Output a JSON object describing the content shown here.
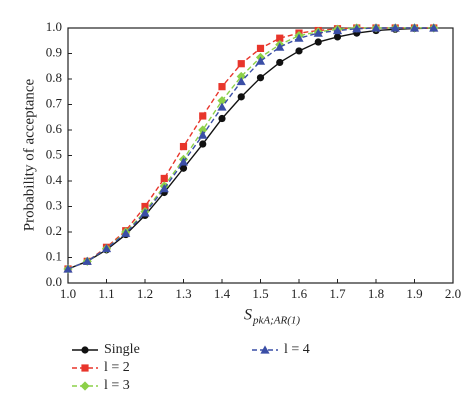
{
  "chart_data": {
    "type": "line",
    "xlabel": "S",
    "xlabel_subscript": "pkA;AR(1)",
    "ylabel": "Probability of acceptance",
    "x": [
      1.0,
      1.05,
      1.1,
      1.15,
      1.2,
      1.25,
      1.3,
      1.35,
      1.4,
      1.45,
      1.5,
      1.55,
      1.6,
      1.65,
      1.7,
      1.75,
      1.8,
      1.85,
      1.9,
      1.95
    ],
    "series": [
      {
        "name": "Single",
        "color": "#111111",
        "marker": "circle",
        "dashed": false,
        "values": [
          0.055,
          0.085,
          0.13,
          0.19,
          0.265,
          0.355,
          0.45,
          0.545,
          0.645,
          0.73,
          0.805,
          0.865,
          0.91,
          0.945,
          0.965,
          0.98,
          0.99,
          0.995,
          0.998,
          1.0
        ]
      },
      {
        "name": "l = 2",
        "color": "#e8352b",
        "marker": "square",
        "dashed": true,
        "values": [
          0.055,
          0.085,
          0.14,
          0.205,
          0.3,
          0.41,
          0.535,
          0.655,
          0.77,
          0.86,
          0.92,
          0.96,
          0.98,
          0.99,
          0.997,
          1.0,
          1.0,
          1.0,
          1.0,
          1.0
        ]
      },
      {
        "name": "l = 3",
        "color": "#8cd048",
        "marker": "diamond",
        "dashed": true,
        "values": [
          0.055,
          0.085,
          0.135,
          0.2,
          0.28,
          0.38,
          0.485,
          0.6,
          0.715,
          0.81,
          0.885,
          0.935,
          0.97,
          0.985,
          0.995,
          1.0,
          1.0,
          1.0,
          1.0,
          1.0
        ]
      },
      {
        "name": "l = 4",
        "color": "#3a4ea6",
        "marker": "triangle",
        "dashed": true,
        "values": [
          0.055,
          0.085,
          0.135,
          0.195,
          0.275,
          0.37,
          0.475,
          0.58,
          0.69,
          0.79,
          0.87,
          0.925,
          0.96,
          0.98,
          0.99,
          0.997,
          1.0,
          1.0,
          1.0,
          1.0
        ]
      }
    ],
    "xlim": [
      1.0,
      2.0
    ],
    "xticks": [
      {
        "value": 1.0,
        "label": "1.0"
      },
      {
        "value": 1.1,
        "label": "1.1"
      },
      {
        "value": 1.2,
        "label": "1.2"
      },
      {
        "value": 1.3,
        "label": "1.3"
      },
      {
        "value": 1.4,
        "label": "1.4"
      },
      {
        "value": 1.5,
        "label": "1.5"
      },
      {
        "value": 1.6,
        "label": "1.6"
      },
      {
        "value": 1.7,
        "label": "1.7"
      },
      {
        "value": 1.8,
        "label": "1.8"
      },
      {
        "value": 1.9,
        "label": "1.9"
      },
      {
        "value": 2.0,
        "label": "2.0"
      }
    ],
    "ylim": [
      0.0,
      1.0
    ],
    "yticks": [
      {
        "value": 0.0,
        "label": "0.0"
      },
      0.1,
      0.2,
      0.3,
      0.4,
      0.5,
      0.6,
      0.7,
      0.8,
      0.9,
      {
        "value": 1.0,
        "label": "1.0"
      }
    ]
  }
}
